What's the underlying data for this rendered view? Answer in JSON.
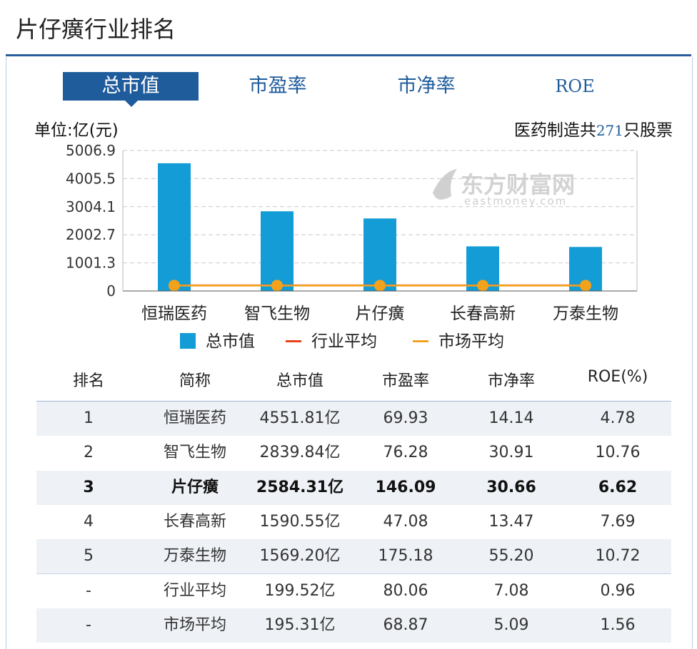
{
  "page_title": "片仔癀行业排名",
  "tabs": [
    {
      "label": "总市值",
      "active": true
    },
    {
      "label": "市盈率",
      "active": false
    },
    {
      "label": "市净率",
      "active": false
    },
    {
      "label": "ROE",
      "active": false
    }
  ],
  "unit_label": "单位:亿(元)",
  "stock_count": {
    "prefix": "医药制造共",
    "count": "271",
    "suffix": "只股票"
  },
  "watermark": {
    "name": "东方财富网",
    "url": "eastmoney.com"
  },
  "colors": {
    "accent": "#1f5c9c",
    "bar": "#149cd6",
    "industry_avg": "#e8421b",
    "market_avg": "#f4a21c"
  },
  "chart_data": {
    "type": "bar",
    "title": "",
    "xlabel": "",
    "ylabel": "",
    "categories": [
      "恒瑞医药",
      "智飞生物",
      "片仔癀",
      "长春高新",
      "万泰生物"
    ],
    "series": [
      {
        "name": "总市值",
        "type": "bar",
        "values": [
          4551.81,
          2839.84,
          2584.31,
          1590.55,
          1569.2
        ]
      },
      {
        "name": "行业平均",
        "type": "line",
        "values": [
          199.52,
          199.52,
          199.52,
          199.52,
          199.52
        ]
      },
      {
        "name": "市场平均",
        "type": "line",
        "values": [
          195.31,
          195.31,
          195.31,
          195.31,
          195.31
        ]
      }
    ],
    "yticks": [
      "5006.9",
      "4005.5",
      "3004.1",
      "2002.7",
      "1001.3",
      "0"
    ],
    "ylim": [
      0,
      5006.9
    ],
    "grid": true,
    "legend_position": "bottom"
  },
  "table": {
    "headers": [
      "排名",
      "简称",
      "总市值",
      "市盈率",
      "市净率",
      "ROE(%)"
    ],
    "rows": [
      {
        "cells": [
          "1",
          "恒瑞医药",
          "4551.81亿",
          "69.93",
          "14.14",
          "4.78"
        ],
        "bold": false,
        "shade": true
      },
      {
        "cells": [
          "2",
          "智飞生物",
          "2839.84亿",
          "76.28",
          "30.91",
          "10.76"
        ],
        "bold": false,
        "shade": false
      },
      {
        "cells": [
          "3",
          "片仔癀",
          "2584.31亿",
          "146.09",
          "30.66",
          "6.62"
        ],
        "bold": true,
        "shade": true
      },
      {
        "cells": [
          "4",
          "长春高新",
          "1590.55亿",
          "47.08",
          "13.47",
          "7.69"
        ],
        "bold": false,
        "shade": false
      },
      {
        "cells": [
          "5",
          "万泰生物",
          "1569.20亿",
          "175.18",
          "55.20",
          "10.72"
        ],
        "bold": false,
        "shade": true
      },
      {
        "cells": [
          "-",
          "行业平均",
          "199.52亿",
          "80.06",
          "7.08",
          "0.96"
        ],
        "bold": false,
        "shade": false
      },
      {
        "cells": [
          "-",
          "市场平均",
          "195.31亿",
          "68.87",
          "5.09",
          "1.56"
        ],
        "bold": false,
        "shade": true
      }
    ]
  }
}
